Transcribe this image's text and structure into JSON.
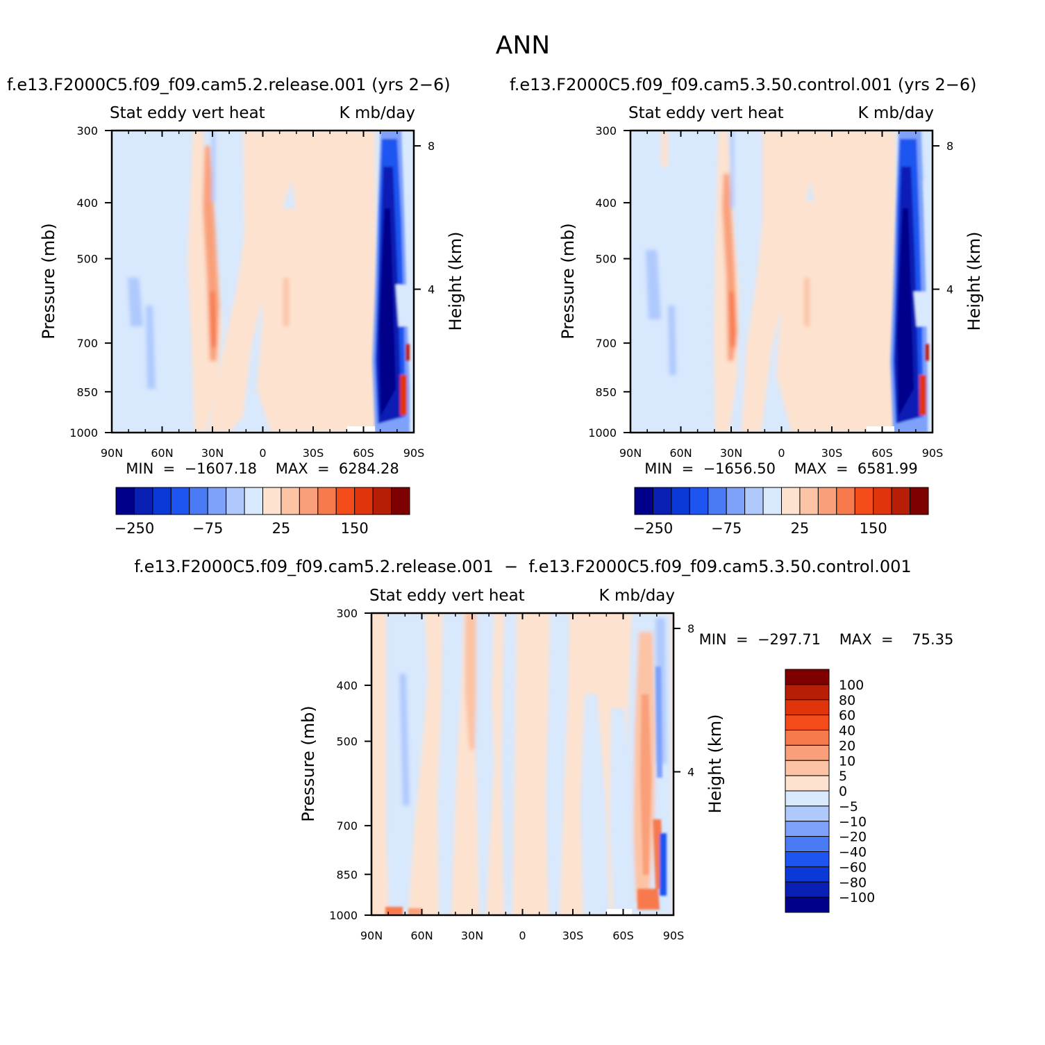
{
  "season": "ANN",
  "colors": {
    "abs_levels": [
      "#00008b",
      "#0a1fb4",
      "#0a39d8",
      "#1e55f0",
      "#4a7bf5",
      "#7ea1fa",
      "#afc9fd",
      "#d8e8fd",
      "#fde2cf",
      "#fcc3a4",
      "#f9a07a",
      "#f77a4d",
      "#f34c1a",
      "#e0340b",
      "#b81e05",
      "#7f0000"
    ],
    "diff_levels": [
      "#00008b",
      "#0a1fb4",
      "#0a39d8",
      "#1e55f0",
      "#4a7bf5",
      "#7ea1fa",
      "#afc9fd",
      "#d8e8fd",
      "#fde2cf",
      "#fcc3a4",
      "#f9a07a",
      "#f77a4d",
      "#f34c1a",
      "#e0340b",
      "#b81e05",
      "#7f0000"
    ]
  },
  "panels": [
    {
      "case": "f.e13.F2000C5.f09_f09.cam5.2.release.001  (yrs 2−6)",
      "left_title": "Stat  eddy  vert  heat",
      "right_title": "K  mb/day",
      "ylabel": "Pressure  (mb)",
      "ylabel_right": "Height  (km)",
      "min_max": "MIN  =  −1607.18    MAX  =  6284.28",
      "colorbar_labels": [
        "−250",
        "−75",
        "25",
        "150"
      ]
    },
    {
      "case": "f.e13.F2000C5.f09_f09.cam5.3.50.control.001  (yrs 2−6)",
      "left_title": "Stat  eddy  vert  heat",
      "right_title": "K  mb/day",
      "ylabel": "Pressure  (mb)",
      "ylabel_right": "Height  (km)",
      "min_max": "MIN  =  −1656.50    MAX  =  6581.99",
      "colorbar_labels": [
        "−250",
        "−75",
        "25",
        "150"
      ]
    },
    {
      "case": "f.e13.F2000C5.f09_f09.cam5.2.release.001  −  f.e13.F2000C5.f09_f09.cam5.3.50.control.001",
      "left_title": "Stat  eddy  vert  heat",
      "right_title": "K  mb/day",
      "ylabel": "Pressure  (mb)",
      "ylabel_right": "Height  (km)",
      "min_max": "MIN  =  −297.71    MAX  =    75.35",
      "colorbar_labels": [
        "100",
        "80",
        "60",
        "40",
        "20",
        "10",
        "5",
        "0",
        "−5",
        "−10",
        "−20",
        "−40",
        "−60",
        "−80",
        "−100"
      ]
    }
  ],
  "chart_data": [
    {
      "type": "heatmap",
      "title": "f.e13.F2000C5.f09_f09.cam5.2.release.001  (yrs 2−6)",
      "xlabel": "",
      "ylabel": "Pressure  (mb)",
      "x_ticks": [
        "90N",
        "60N",
        "30N",
        "0",
        "30S",
        "60S",
        "90S"
      ],
      "y_ticks": [
        "300",
        "400",
        "500",
        "700",
        "850",
        "1000"
      ],
      "y_right_ticks": [
        "8",
        "4"
      ],
      "ylim": [
        1000,
        300
      ],
      "y_scale": "log",
      "units": "K  mb/day",
      "min": -1607.18,
      "max": 6284.28,
      "contour_levels_labeled": [
        -250,
        -75,
        25,
        150
      ]
    },
    {
      "type": "heatmap",
      "title": "f.e13.F2000C5.f09_f09.cam5.3.50.control.001  (yrs 2−6)",
      "xlabel": "",
      "ylabel": "Pressure  (mb)",
      "x_ticks": [
        "90N",
        "60N",
        "30N",
        "0",
        "30S",
        "60S",
        "90S"
      ],
      "y_ticks": [
        "300",
        "400",
        "500",
        "700",
        "850",
        "1000"
      ],
      "y_right_ticks": [
        "8",
        "4"
      ],
      "ylim": [
        1000,
        300
      ],
      "y_scale": "log",
      "units": "K  mb/day",
      "min": -1656.5,
      "max": 6581.99,
      "contour_levels_labeled": [
        -250,
        -75,
        25,
        150
      ]
    },
    {
      "type": "heatmap",
      "title": "f.e13.F2000C5.f09_f09.cam5.2.release.001  −  f.e13.F2000C5.f09_f09.cam5.3.50.control.001",
      "xlabel": "",
      "ylabel": "Pressure  (mb)",
      "x_ticks": [
        "90N",
        "60N",
        "30N",
        "0",
        "30S",
        "60S",
        "90S"
      ],
      "y_ticks": [
        "300",
        "400",
        "500",
        "700",
        "850",
        "1000"
      ],
      "y_right_ticks": [
        "8",
        "4"
      ],
      "ylim": [
        1000,
        300
      ],
      "y_scale": "log",
      "units": "K  mb/day",
      "min": -297.71,
      "max": 75.35,
      "contour_levels": [
        -100,
        -80,
        -60,
        -40,
        -20,
        -10,
        -5,
        0,
        5,
        10,
        20,
        40,
        60,
        80,
        100
      ]
    }
  ]
}
